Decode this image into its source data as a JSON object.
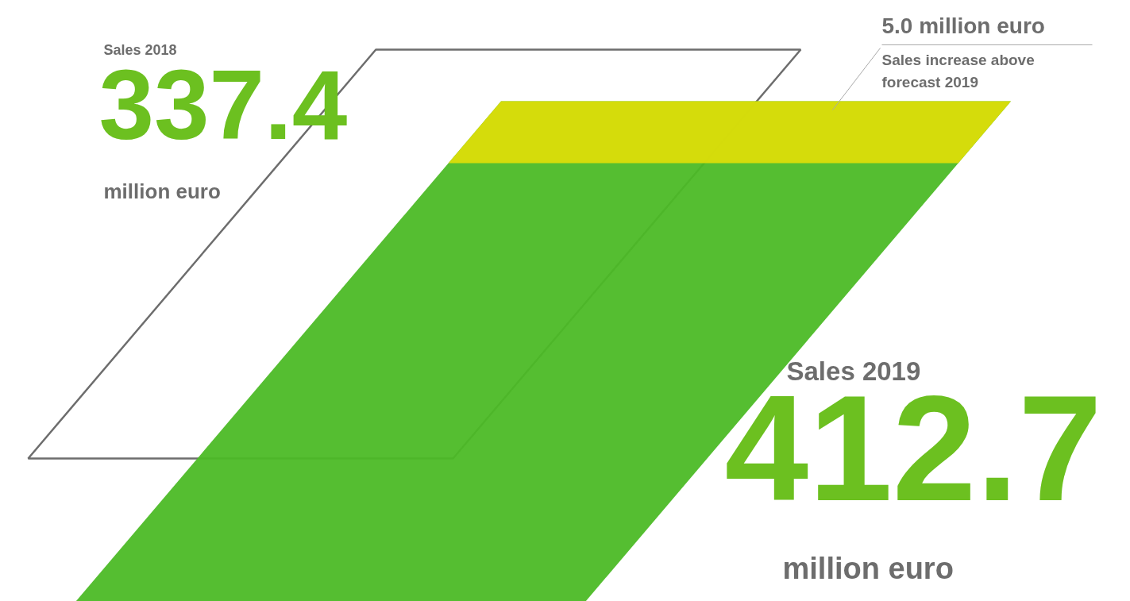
{
  "chart_data": {
    "type": "other",
    "categories": [
      "Sales 2018",
      "Sales 2019"
    ],
    "values": [
      337.4,
      412.7
    ],
    "value_labels": [
      "337.4",
      "412.7"
    ],
    "colors": [
      "#6d6d6d",
      "#4cbb26"
    ],
    "annotations": [
      "million euro",
      "million euro",
      "5.0 million euro",
      "Sales increase above forecast 2019"
    ]
  }
}
